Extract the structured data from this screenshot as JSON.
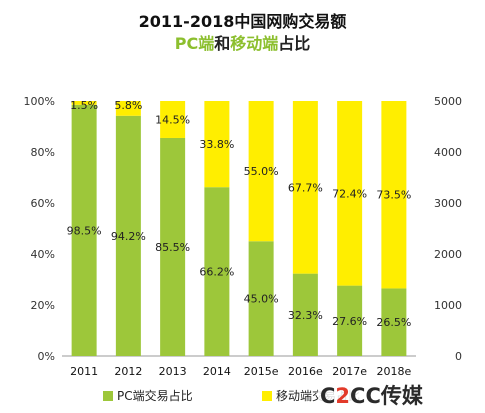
{
  "chart_data": {
    "type": "bar",
    "stacked": true,
    "title_line1": "2011-2018中国网购交易额",
    "title_line2_parts": [
      {
        "text": "PC端",
        "color": "#8cbf2e"
      },
      {
        "text": "和",
        "color": "#222222"
      },
      {
        "text": "移动端",
        "color": "#8cbf2e"
      },
      {
        "text": "占比",
        "color": "#222222"
      }
    ],
    "categories": [
      "2011",
      "2012",
      "2013",
      "2014",
      "2015e",
      "2016e",
      "2017e",
      "2018e"
    ],
    "series": [
      {
        "name": "PC端交易占比",
        "color": "#9dc73a",
        "values": [
          98.5,
          94.2,
          85.5,
          66.2,
          45.0,
          32.3,
          27.6,
          26.5
        ],
        "labels": [
          "98.5%",
          "94.2%",
          "85.5%",
          "66.2%",
          "45.0%",
          "32.3%",
          "27.6%",
          "26.5%"
        ]
      },
      {
        "name": "移动端交易占比",
        "color": "#ffee00",
        "values": [
          1.5,
          5.8,
          14.5,
          33.8,
          55.0,
          67.7,
          72.4,
          73.5
        ],
        "labels": [
          "1.5%",
          "5.8%",
          "14.5%",
          "33.8%",
          "55.0%",
          "67.7%",
          "72.4%",
          "73.5%"
        ]
      }
    ],
    "y_left_ticks": [
      "0%",
      "20%",
      "40%",
      "60%",
      "80%",
      "100%"
    ],
    "y_right_ticks": [
      "0",
      "1000",
      "2000",
      "3000",
      "4000",
      "5000"
    ],
    "ylim": [
      0,
      100
    ],
    "ylim_right": [
      0,
      5000
    ],
    "legend_position": "bottom",
    "grid": false
  },
  "watermark": {
    "part1": "C",
    "part2": "2",
    "part3": "CC",
    "part4": "传媒"
  }
}
